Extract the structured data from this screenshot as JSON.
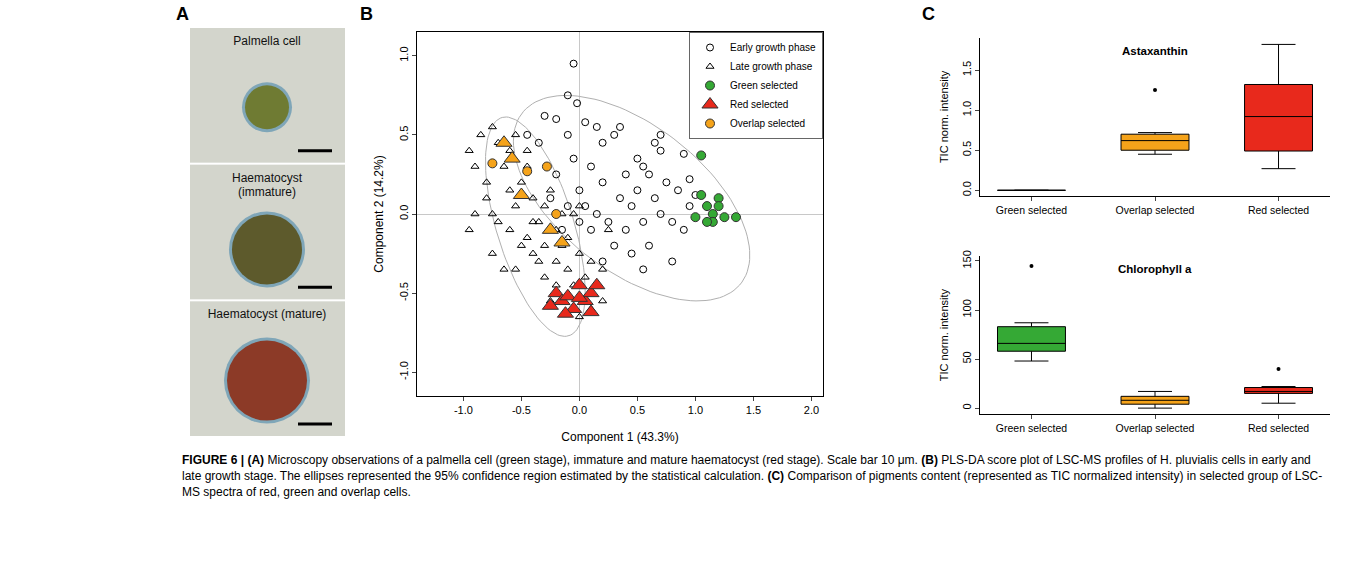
{
  "panel_a": {
    "letter": "A",
    "cells": [
      {
        "label": "Palmella cell"
      },
      {
        "label": "Haematocyst (immature)"
      },
      {
        "label": "Haematocyst (mature)"
      }
    ]
  },
  "chart_data": [
    {
      "type": "scatter",
      "panel": "B",
      "xlabel": "Component 1 (43.3%)",
      "ylabel": "Component 2 (14.2%)",
      "xlim": [
        -1.4,
        2.1
      ],
      "ylim": [
        -1.15,
        1.15
      ],
      "xticks": [
        {
          "value": -1,
          "label": "-1.0"
        },
        -0.5,
        {
          "value": 0,
          "label": "0.0"
        },
        0.5,
        {
          "value": 1,
          "label": "1.0"
        },
        1.5,
        {
          "value": 2,
          "label": "2.0"
        }
      ],
      "yticks": [
        {
          "value": -1,
          "label": "-1.0"
        },
        -0.5,
        {
          "value": 0,
          "label": "0.0"
        },
        0.5,
        {
          "value": 1,
          "label": "1.0"
        }
      ],
      "grid": false,
      "legend": "top right",
      "series": [
        {
          "name": "Early growth phase",
          "color": "#000000",
          "marker": "circle-open",
          "x": [
            -0.05,
            -0.1,
            -0.02,
            -0.2,
            -0.3,
            0.05,
            0.15,
            -0.1,
            0.3,
            0.2,
            -0.35,
            -0.45,
            0.5,
            0.55,
            0.7,
            0.9,
            0.6,
            0.75,
            0.85,
            0.95,
            1.0,
            0.65,
            0.5,
            0.4,
            0.35,
            0.2,
            0.1,
            -0.05,
            0.0,
            0.05,
            0.15,
            0.25,
            0.4,
            0.55,
            0.7,
            0.8,
            0.9,
            0.6,
            0.45,
            0.3,
            0.1,
            0.0,
            -0.1,
            -0.15,
            0.8,
            0.55,
            0.35,
            1.2,
            0.7,
            -0.2,
            0.2,
            0.95,
            0.65,
            0.45,
            -0.25
          ],
          "y": [
            0.95,
            0.75,
            0.7,
            0.6,
            0.62,
            0.58,
            0.55,
            0.5,
            0.5,
            0.45,
            0.45,
            0.5,
            0.35,
            0.3,
            0.4,
            0.38,
            0.25,
            0.2,
            0.15,
            0.22,
            0.12,
            0.1,
            0.15,
            0.25,
            0.1,
            0.2,
            0.3,
            0.35,
            0.15,
            0.05,
            0.0,
            -0.05,
            -0.1,
            -0.05,
            0.0,
            -0.05,
            -0.1,
            -0.2,
            -0.25,
            -0.2,
            -0.1,
            -0.05,
            0.05,
            -0.1,
            -0.3,
            -0.35,
            0.55,
            0.1,
            0.5,
            0.25,
            -0.3,
            0.05,
            0.45,
            0.05,
            0.1
          ]
        },
        {
          "name": "Late growth phase",
          "color": "#000000",
          "marker": "triangle-up-open",
          "x": [
            -0.95,
            -0.9,
            -0.85,
            -0.75,
            -0.7,
            -0.8,
            -0.9,
            -0.95,
            -0.75,
            -0.65,
            -0.6,
            -0.7,
            -0.6,
            -0.55,
            -0.5,
            -0.45,
            -0.4,
            -0.35,
            -0.3,
            -0.25,
            -0.5,
            -0.45,
            -0.4,
            -0.3,
            -0.2,
            -0.55,
            -0.65,
            -0.75,
            -0.1,
            -0.1,
            0.0,
            0.05,
            -0.05,
            0.1,
            0.15,
            -0.2,
            -0.3,
            0.2,
            0.0,
            -0.05,
            -0.15,
            -0.2,
            -0.35,
            -0.6,
            -0.55,
            0.1,
            0.0,
            0.2,
            -0.45,
            -0.8,
            0.25,
            -0.25,
            -0.15,
            -0.4
          ],
          "y": [
            0.4,
            0.3,
            0.5,
            0.55,
            0.45,
            0.2,
            0.0,
            -0.1,
            0.0,
            0.3,
            0.15,
            -0.05,
            -0.1,
            0.05,
            0.2,
            0.3,
            0.1,
            -0.05,
            0.05,
            0.15,
            -0.2,
            -0.15,
            -0.25,
            -0.2,
            -0.3,
            -0.35,
            -0.35,
            -0.25,
            -0.15,
            -0.35,
            -0.25,
            -0.4,
            -0.45,
            -0.3,
            -0.45,
            -0.45,
            -0.4,
            -0.35,
            0.05,
            0.0,
            0.0,
            -0.1,
            -0.3,
            0.4,
            0.5,
            -0.6,
            -0.65,
            -0.55,
            0.4,
            0.1,
            -0.1,
            -0.55,
            -0.2,
            -0.05
          ]
        },
        {
          "name": "Green selected",
          "color": "#35a935",
          "marker": "circle",
          "x": [
            1.05,
            1.05,
            1.1,
            1.15,
            1.2,
            1.15,
            1.1,
            1.25,
            1.35,
            1.2,
            1.0
          ],
          "y": [
            0.37,
            0.12,
            0.05,
            0.0,
            0.1,
            -0.05,
            -0.05,
            -0.02,
            -0.02,
            0.05,
            -0.02
          ]
        },
        {
          "name": "Red selected",
          "color": "#e8291c",
          "marker": "triangle-up",
          "x": [
            -0.2,
            -0.15,
            -0.1,
            -0.05,
            0.0,
            0.05,
            0.1,
            0.15,
            0.1,
            -0.12,
            0.0,
            -0.25
          ],
          "y": [
            -0.5,
            -0.55,
            -0.52,
            -0.6,
            -0.45,
            -0.55,
            -0.5,
            -0.45,
            -0.62,
            -0.63,
            -0.53,
            -0.58
          ]
        },
        {
          "name": "Overlap selected",
          "color": "#f5a31a",
          "marker": "circle",
          "x": [
            -0.75,
            -0.45,
            -0.28,
            -0.2
          ],
          "y": [
            0.32,
            0.27,
            0.3,
            0.0
          ]
        },
        {
          "name": "Overlap selected",
          "color": "#f5a31a",
          "marker": "triangle-up",
          "x": [
            -0.65,
            -0.58,
            -0.5,
            -0.25,
            -0.15
          ],
          "y": [
            0.45,
            0.35,
            0.12,
            -0.1,
            -0.18
          ]
        }
      ],
      "ellipses": [
        {
          "cx": 0.45,
          "cy": 0.1,
          "a": 1.1,
          "b": 0.5,
          "angle": -25
        },
        {
          "cx": -0.38,
          "cy": -0.08,
          "a": 0.75,
          "b": 0.32,
          "angle": -65
        }
      ]
    },
    {
      "type": "box",
      "panel": "C",
      "categories": [
        "Green selected",
        "Overlap selected",
        "Red selected"
      ],
      "colors": [
        "#35a935",
        "#f5a31a",
        "#e8291c"
      ],
      "ylabel": "TIC norm. intensity",
      "grid": false,
      "subplots": [
        {
          "title": "Astaxanthin",
          "ylim": [
            -0.07,
            1.9
          ],
          "yticks": [
            {
              "value": 0,
              "label": "0.0"
            },
            0.5,
            {
              "value": 1,
              "label": "1.0"
            },
            1.5
          ],
          "boxes": [
            {
              "min": 0,
              "q1": 0,
              "median": 0,
              "q3": 0,
              "max": 0,
              "outliers": []
            },
            {
              "min": 0.45,
              "q1": 0.5,
              "median": 0.62,
              "q3": 0.7,
              "max": 0.72,
              "outliers": [
                1.25
              ]
            },
            {
              "min": 0.27,
              "q1": 0.49,
              "median": 0.92,
              "q3": 1.32,
              "max": 1.82,
              "outliers": []
            }
          ]
        },
        {
          "title": "Chlorophyll a",
          "ylim": [
            -6,
            155
          ],
          "yticks": [
            0,
            50,
            100,
            150
          ],
          "boxes": [
            {
              "min": 48,
              "q1": 58,
              "median": 66,
              "q3": 83,
              "max": 87,
              "outliers": [
                145
              ]
            },
            {
              "min": 0,
              "q1": 4,
              "median": 8,
              "q3": 12,
              "max": 17,
              "outliers": []
            },
            {
              "min": 5,
              "q1": 15,
              "median": 17,
              "q3": 21,
              "max": 22,
              "outliers": [
                40
              ]
            }
          ]
        }
      ]
    }
  ],
  "caption": "FIGURE 6 | (A) Microscopy observations of a palmella cell (green stage), immature and mature haematocyst (red stage). Scale bar 10 μm. (B) PLS-DA score plot of LSC-MS profiles of H. pluvialis cells in early and late growth stage. The ellipses represented the 95% confidence region estimated by the statistical calculation. (C) Comparison of pigments content (represented as TIC normalized intensity) in selected group of LSC-MS spectra of red, green and overlap cells."
}
